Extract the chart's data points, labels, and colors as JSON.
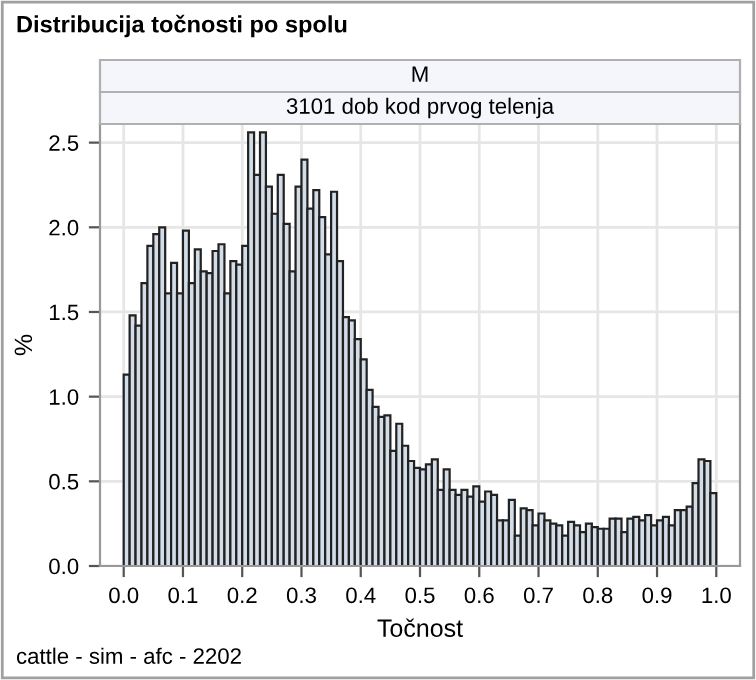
{
  "chart_data": {
    "type": "histogram",
    "title": "Distribucija točnosti po spolu",
    "annotations": [
      "M",
      "3101 dob kod prvog telenja",
      "cattle - sim - afc - 2202"
    ],
    "xlabel": "Točnost",
    "ylabel": "%",
    "bins": [
      0.0,
      0.01,
      0.02,
      0.03,
      0.04,
      0.05,
      0.06,
      0.07,
      0.08,
      0.09,
      0.1,
      0.11,
      0.12,
      0.13,
      0.14,
      0.15,
      0.16,
      0.17,
      0.18,
      0.19,
      0.2,
      0.21,
      0.22,
      0.23,
      0.24,
      0.25,
      0.26,
      0.27,
      0.28,
      0.29,
      0.3,
      0.31,
      0.32,
      0.33,
      0.34,
      0.35,
      0.36,
      0.37,
      0.38,
      0.39,
      0.4,
      0.41,
      0.42,
      0.43,
      0.44,
      0.45,
      0.46,
      0.47,
      0.48,
      0.49,
      0.5,
      0.51,
      0.52,
      0.53,
      0.54,
      0.55,
      0.56,
      0.57,
      0.58,
      0.59,
      0.6,
      0.61,
      0.62,
      0.63,
      0.64,
      0.65,
      0.66,
      0.67,
      0.68,
      0.69,
      0.7,
      0.71,
      0.72,
      0.73,
      0.74,
      0.75,
      0.76,
      0.77,
      0.78,
      0.79,
      0.8,
      0.81,
      0.82,
      0.83,
      0.84,
      0.85,
      0.86,
      0.87,
      0.88,
      0.89,
      0.9,
      0.91,
      0.92,
      0.93,
      0.94,
      0.95,
      0.96,
      0.97,
      0.98,
      0.99,
      1.0
    ],
    "values": [
      1.13,
      1.48,
      1.42,
      1.67,
      1.89,
      1.96,
      2.0,
      1.61,
      1.79,
      1.61,
      1.98,
      1.67,
      1.87,
      1.74,
      1.73,
      1.86,
      1.9,
      1.61,
      1.8,
      1.78,
      1.89,
      2.56,
      2.31,
      2.56,
      2.24,
      2.08,
      2.31,
      2.02,
      1.74,
      2.24,
      2.4,
      2.11,
      2.22,
      2.06,
      1.84,
      2.21,
      1.8,
      1.47,
      1.45,
      1.34,
      1.22,
      1.04,
      0.94,
      0.88,
      0.89,
      0.68,
      0.84,
      0.71,
      0.62,
      0.58,
      0.57,
      0.6,
      0.63,
      0.45,
      0.57,
      0.45,
      0.42,
      0.45,
      0.41,
      0.47,
      0.38,
      0.44,
      0.42,
      0.27,
      0.27,
      0.39,
      0.18,
      0.34,
      0.33,
      0.24,
      0.31,
      0.27,
      0.25,
      0.24,
      0.18,
      0.26,
      0.24,
      0.2,
      0.25,
      0.23,
      0.22,
      0.22,
      0.28,
      0.28,
      0.2,
      0.28,
      0.29,
      0.27,
      0.3,
      0.24,
      0.27,
      0.29,
      0.24,
      0.33,
      0.33,
      0.35,
      0.49,
      0.63,
      0.62,
      0.43
    ],
    "color": "#d3dde8",
    "xlim": [
      -0.04,
      1.04
    ],
    "ylim": [
      0,
      2.61
    ],
    "xticks": [
      {
        "value": 0,
        "label": "0.0"
      },
      {
        "value": 0.1,
        "label": "0.1"
      },
      {
        "value": 0.2,
        "label": "0.2"
      },
      {
        "value": 0.3,
        "label": "0.3"
      },
      {
        "value": 0.4,
        "label": "0.4"
      },
      {
        "value": 0.5,
        "label": "0.5"
      },
      {
        "value": 0.6,
        "label": "0.6"
      },
      {
        "value": 0.7,
        "label": "0.7"
      },
      {
        "value": 0.8,
        "label": "0.8"
      },
      {
        "value": 0.9,
        "label": "0.9"
      },
      {
        "value": 1,
        "label": "1.0"
      }
    ],
    "yticks": [
      {
        "value": 0,
        "label": "0.0"
      },
      {
        "value": 0.5,
        "label": "0.5"
      },
      {
        "value": 1,
        "label": "1.0"
      },
      {
        "value": 1.5,
        "label": "1.5"
      },
      {
        "value": 2,
        "label": "2.0"
      },
      {
        "value": 2.5,
        "label": "2.5"
      }
    ],
    "grid": true
  }
}
